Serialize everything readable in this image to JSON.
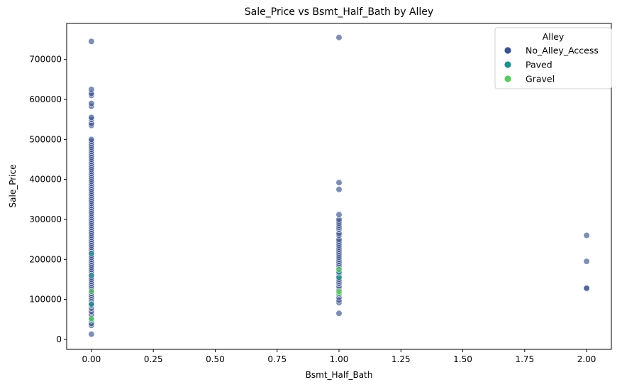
{
  "chart_data": {
    "type": "scatter",
    "title": "Sale_Price vs Bsmt_Half_Bath by Alley",
    "xlabel": "Bsmt_Half_Bath",
    "ylabel": "Sale_Price",
    "xlim": [
      -0.1,
      2.1
    ],
    "ylim": [
      -25000,
      790000
    ],
    "xticks": [
      0.0,
      0.25,
      0.5,
      0.75,
      1.0,
      1.25,
      1.5,
      1.75,
      2.0
    ],
    "xtick_labels": [
      "0.00",
      "0.25",
      "0.50",
      "0.75",
      "1.00",
      "1.25",
      "1.50",
      "1.75",
      "2.00"
    ],
    "yticks": [
      0,
      100000,
      200000,
      300000,
      400000,
      500000,
      600000,
      700000
    ],
    "ytick_labels": [
      "0",
      "100000",
      "200000",
      "300000",
      "400000",
      "500000",
      "600000",
      "700000"
    ],
    "grid": false,
    "legend": {
      "title": "Alley",
      "placement": "top-right"
    },
    "series": [
      {
        "name": "No_Alley_Access",
        "color": "#3b528b",
        "points": [
          [
            0,
            13000
          ],
          [
            0,
            35000
          ],
          [
            0,
            40000
          ],
          [
            0,
            55000
          ],
          [
            0,
            62000
          ],
          [
            0,
            70000
          ],
          [
            0,
            78000
          ],
          [
            0,
            85000
          ],
          [
            0,
            90000
          ],
          [
            0,
            98000
          ],
          [
            0,
            105000
          ],
          [
            0,
            110000
          ],
          [
            0,
            115000
          ],
          [
            0,
            120000
          ],
          [
            0,
            125000
          ],
          [
            0,
            130000
          ],
          [
            0,
            135000
          ],
          [
            0,
            140000
          ],
          [
            0,
            145000
          ],
          [
            0,
            150000
          ],
          [
            0,
            155000
          ],
          [
            0,
            160000
          ],
          [
            0,
            165000
          ],
          [
            0,
            170000
          ],
          [
            0,
            175000
          ],
          [
            0,
            180000
          ],
          [
            0,
            185000
          ],
          [
            0,
            190000
          ],
          [
            0,
            195000
          ],
          [
            0,
            200000
          ],
          [
            0,
            205000
          ],
          [
            0,
            210000
          ],
          [
            0,
            215000
          ],
          [
            0,
            220000
          ],
          [
            0,
            225000
          ],
          [
            0,
            230000
          ],
          [
            0,
            235000
          ],
          [
            0,
            240000
          ],
          [
            0,
            245000
          ],
          [
            0,
            250000
          ],
          [
            0,
            255000
          ],
          [
            0,
            260000
          ],
          [
            0,
            265000
          ],
          [
            0,
            270000
          ],
          [
            0,
            275000
          ],
          [
            0,
            280000
          ],
          [
            0,
            285000
          ],
          [
            0,
            290000
          ],
          [
            0,
            295000
          ],
          [
            0,
            300000
          ],
          [
            0,
            305000
          ],
          [
            0,
            310000
          ],
          [
            0,
            315000
          ],
          [
            0,
            320000
          ],
          [
            0,
            325000
          ],
          [
            0,
            330000
          ],
          [
            0,
            335000
          ],
          [
            0,
            340000
          ],
          [
            0,
            345000
          ],
          [
            0,
            350000
          ],
          [
            0,
            355000
          ],
          [
            0,
            360000
          ],
          [
            0,
            365000
          ],
          [
            0,
            370000
          ],
          [
            0,
            375000
          ],
          [
            0,
            380000
          ],
          [
            0,
            385000
          ],
          [
            0,
            390000
          ],
          [
            0,
            395000
          ],
          [
            0,
            400000
          ],
          [
            0,
            405000
          ],
          [
            0,
            410000
          ],
          [
            0,
            415000
          ],
          [
            0,
            420000
          ],
          [
            0,
            425000
          ],
          [
            0,
            430000
          ],
          [
            0,
            435000
          ],
          [
            0,
            440000
          ],
          [
            0,
            445000
          ],
          [
            0,
            450000
          ],
          [
            0,
            455000
          ],
          [
            0,
            460000
          ],
          [
            0,
            465000
          ],
          [
            0,
            470000
          ],
          [
            0,
            475000
          ],
          [
            0,
            480000
          ],
          [
            0,
            485000
          ],
          [
            0,
            490000
          ],
          [
            0,
            495000
          ],
          [
            0,
            500000
          ],
          [
            0,
            535000
          ],
          [
            0,
            540000
          ],
          [
            0,
            550000
          ],
          [
            0,
            555000
          ],
          [
            0,
            583000
          ],
          [
            0,
            590000
          ],
          [
            0,
            610000
          ],
          [
            0,
            615000
          ],
          [
            0,
            625000
          ],
          [
            0,
            745000
          ],
          [
            1,
            65000
          ],
          [
            1,
            92000
          ],
          [
            1,
            98000
          ],
          [
            1,
            105000
          ],
          [
            1,
            112000
          ],
          [
            1,
            120000
          ],
          [
            1,
            125000
          ],
          [
            1,
            132000
          ],
          [
            1,
            140000
          ],
          [
            1,
            145000
          ],
          [
            1,
            150000
          ],
          [
            1,
            155000
          ],
          [
            1,
            160000
          ],
          [
            1,
            165000
          ],
          [
            1,
            170000
          ],
          [
            1,
            175000
          ],
          [
            1,
            180000
          ],
          [
            1,
            185000
          ],
          [
            1,
            190000
          ],
          [
            1,
            195000
          ],
          [
            1,
            200000
          ],
          [
            1,
            205000
          ],
          [
            1,
            210000
          ],
          [
            1,
            215000
          ],
          [
            1,
            220000
          ],
          [
            1,
            225000
          ],
          [
            1,
            230000
          ],
          [
            1,
            235000
          ],
          [
            1,
            240000
          ],
          [
            1,
            245000
          ],
          [
            1,
            250000
          ],
          [
            1,
            260000
          ],
          [
            1,
            265000
          ],
          [
            1,
            275000
          ],
          [
            1,
            280000
          ],
          [
            1,
            285000
          ],
          [
            1,
            290000
          ],
          [
            1,
            295000
          ],
          [
            1,
            300000
          ],
          [
            1,
            312000
          ],
          [
            1,
            375000
          ],
          [
            1,
            392000
          ],
          [
            1,
            755000
          ],
          [
            2,
            127000
          ],
          [
            2,
            128000
          ],
          [
            2,
            195000
          ],
          [
            2,
            260000
          ]
        ]
      },
      {
        "name": "Paved",
        "color": "#21918c",
        "points": [
          [
            0,
            48000
          ],
          [
            0,
            88000
          ],
          [
            0,
            160000
          ],
          [
            0,
            215000
          ],
          [
            1,
            155000
          ],
          [
            1,
            168000
          ]
        ]
      },
      {
        "name": "Gravel",
        "color": "#5ec962",
        "points": [
          [
            0,
            52000
          ],
          [
            0,
            120000
          ],
          [
            1,
            115000
          ],
          [
            1,
            120000
          ],
          [
            1,
            175000
          ]
        ]
      }
    ]
  }
}
